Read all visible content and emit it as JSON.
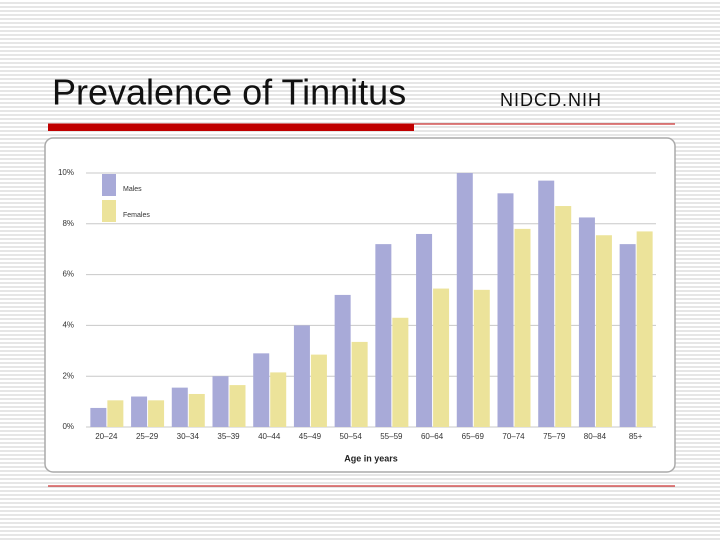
{
  "slide": {
    "title": "Prevalence of Tinnitus",
    "source": "NIDCD.NIH"
  },
  "chart_data": {
    "type": "bar",
    "x_label": "Age in years",
    "categories": [
      "20–24",
      "25–29",
      "30–34",
      "35–39",
      "40–44",
      "45–49",
      "50–54",
      "55–59",
      "60–64",
      "65–69",
      "70–74",
      "75–79",
      "80–84",
      "85+"
    ],
    "series": [
      {
        "name": "Males",
        "color": "#a8aad8",
        "values": [
          0.75,
          1.2,
          1.55,
          2.0,
          2.9,
          4.0,
          5.2,
          7.2,
          7.6,
          10.0,
          9.2,
          9.7,
          8.25,
          7.2
        ]
      },
      {
        "name": "Females",
        "color": "#ece39a",
        "values": [
          1.05,
          1.05,
          1.3,
          1.65,
          2.15,
          2.85,
          3.35,
          4.3,
          5.45,
          5.4,
          7.8,
          8.7,
          7.55,
          7.7
        ]
      }
    ],
    "ylim": [
      0,
      10
    ],
    "yticks": [
      {
        "value": 0,
        "label": "0%"
      },
      {
        "value": 2,
        "label": "2%"
      },
      {
        "value": 4,
        "label": "4%"
      },
      {
        "value": 6,
        "label": "6%"
      },
      {
        "value": 8,
        "label": "8%"
      },
      {
        "value": 10,
        "label": "10%"
      }
    ],
    "grid": true,
    "legend": "upper left"
  }
}
